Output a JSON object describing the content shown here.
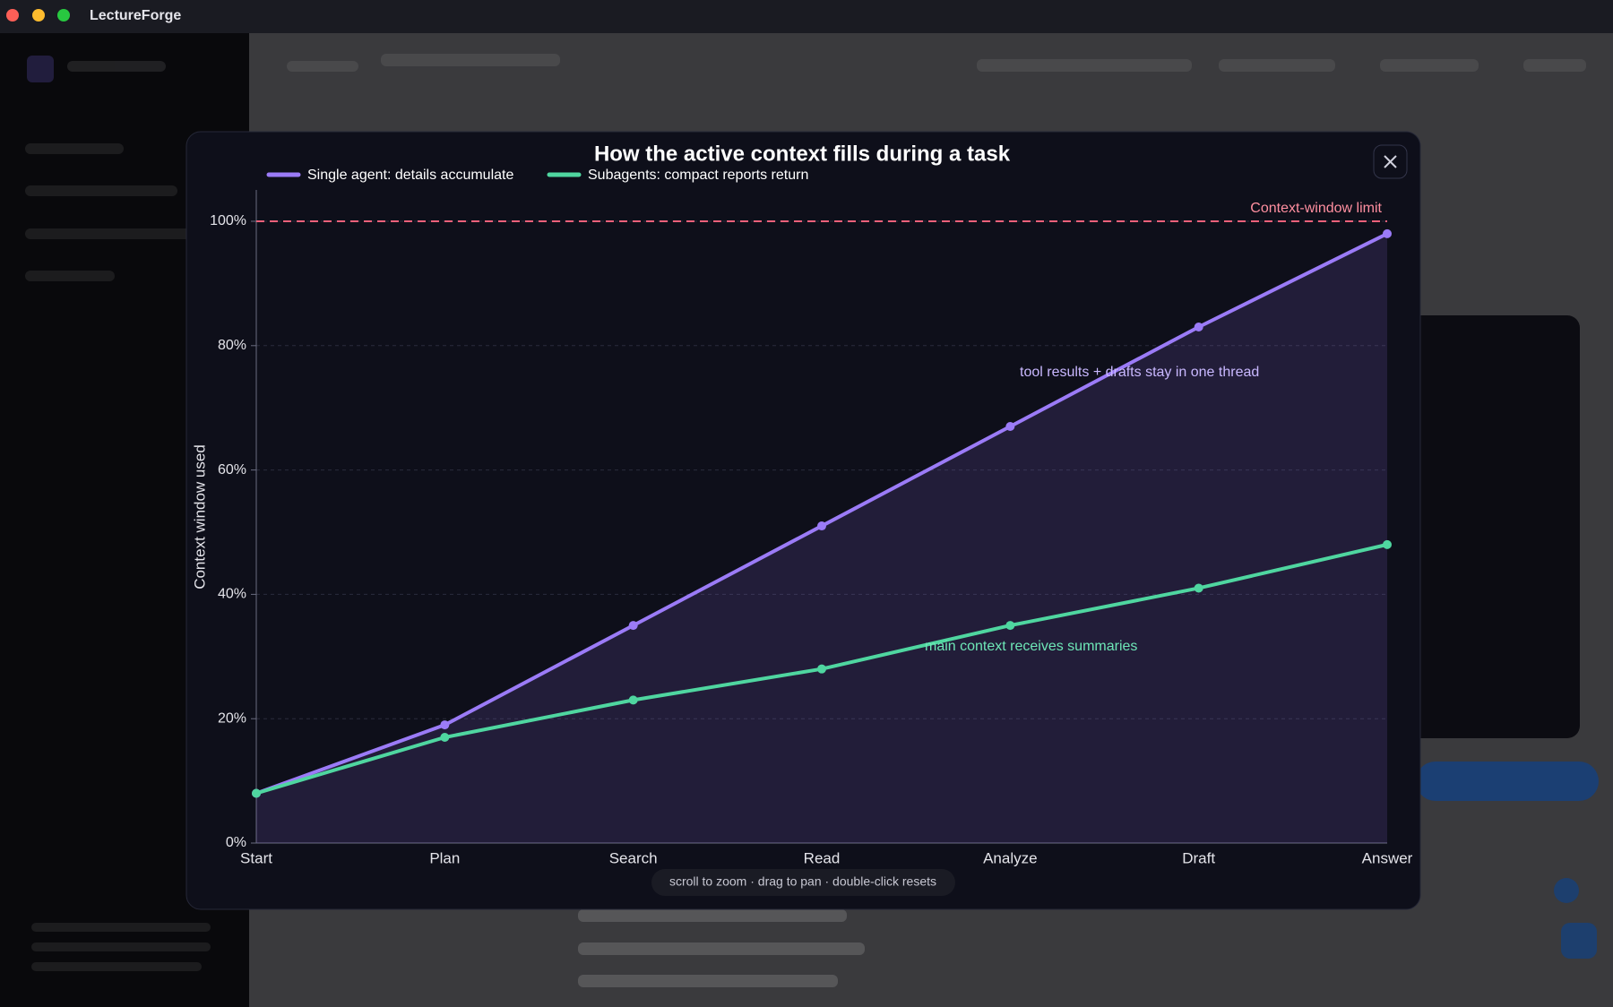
{
  "app": {
    "title": "LectureForge"
  },
  "modal": {
    "hint": "scroll to zoom · drag to pan · double-click resets"
  },
  "chart_data": {
    "type": "line",
    "title": "How the active context fills during a task",
    "y_label": "Context window used",
    "categories": [
      "Start",
      "Plan",
      "Search",
      "Read",
      "Analyze",
      "Draft",
      "Answer"
    ],
    "series": [
      {
        "name": "Single agent: details accumulate",
        "color": "#9b7bf7",
        "values": [
          8,
          19,
          35,
          51,
          67,
          83,
          98
        ],
        "area": true
      },
      {
        "name": "Subagents: compact reports return",
        "color": "#4fd6a0",
        "values": [
          8,
          17,
          23,
          28,
          35,
          41,
          48
        ]
      }
    ],
    "ylim": [
      0,
      100
    ],
    "yticks": [
      {
        "value": 0,
        "label": "0%"
      },
      {
        "value": 20,
        "label": "20%"
      },
      {
        "value": 40,
        "label": "40%"
      },
      {
        "value": 60,
        "label": "60%"
      },
      {
        "value": 80,
        "label": "80%"
      },
      {
        "value": 100,
        "label": "100%"
      }
    ],
    "grid": true,
    "limit": {
      "value": 100,
      "label": "Context-window limit",
      "color": "#f0607a"
    },
    "annotations": [
      {
        "text": "tool results + drafts stay in one thread",
        "series": 0
      },
      {
        "text": "main context receives summaries",
        "series": 1
      }
    ]
  }
}
